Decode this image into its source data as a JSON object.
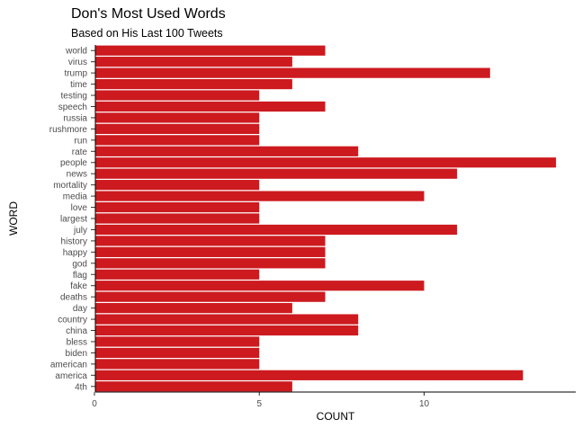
{
  "chart_data": {
    "type": "bar",
    "orientation": "horizontal",
    "title": "Don's Most Used Words",
    "subtitle": "Based on His Last 100 Tweets",
    "xlabel": "COUNT",
    "ylabel": "WORD",
    "xlim": [
      0,
      14
    ],
    "xticks": [
      0,
      5,
      10
    ],
    "grid": false,
    "bar_color": "#cc1a1f",
    "categories": [
      "world",
      "virus",
      "trump",
      "time",
      "testing",
      "speech",
      "russia",
      "rushmore",
      "run",
      "rate",
      "people",
      "news",
      "mortality",
      "media",
      "love",
      "largest",
      "july",
      "history",
      "happy",
      "god",
      "flag",
      "fake",
      "deaths",
      "day",
      "country",
      "china",
      "bless",
      "biden",
      "american",
      "america",
      "4th"
    ],
    "values": [
      7,
      6,
      12,
      6,
      5,
      7,
      5,
      5,
      5,
      8,
      14,
      11,
      5,
      10,
      5,
      5,
      11,
      7,
      7,
      7,
      5,
      10,
      7,
      6,
      8,
      8,
      5,
      5,
      5,
      13,
      6
    ]
  }
}
